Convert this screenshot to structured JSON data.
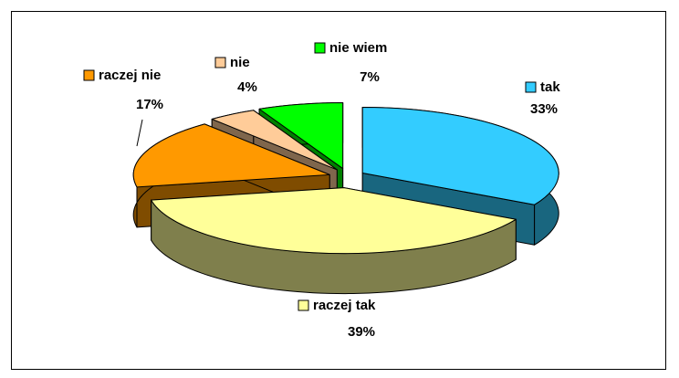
{
  "chart_data": {
    "type": "pie3d",
    "categories": [
      "tak",
      "raczej tak",
      "raczej nie",
      "nie",
      "nie wiem"
    ],
    "values": [
      33,
      39,
      17,
      4,
      7
    ],
    "value_labels": [
      "33%",
      "39%",
      "17%",
      "4%",
      "7%"
    ],
    "colors": [
      "#33ccff",
      "#ffff99",
      "#ff9900",
      "#ffcc99",
      "#00ff00"
    ]
  }
}
